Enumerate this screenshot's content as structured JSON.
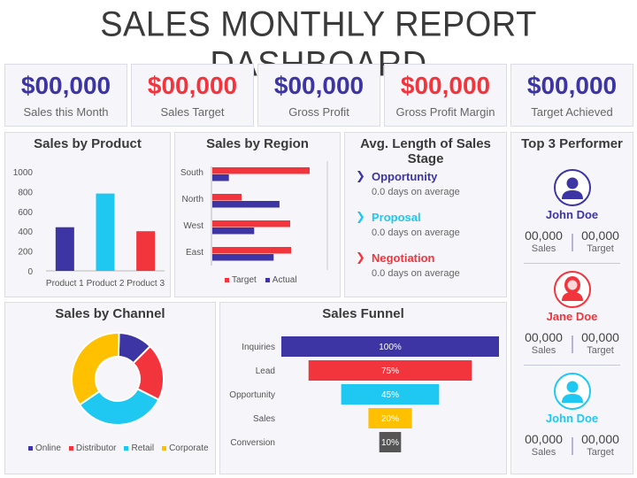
{
  "title": "SALES MONTHLY REPORT DASHBOARD",
  "colors": {
    "purple": "#3d35a3",
    "red": "#f2353d",
    "cyan": "#1ec8f0",
    "yellow": "#ffc000",
    "dark": "#555555"
  },
  "kpis": [
    {
      "value": "$00,000",
      "label": "Sales this Month",
      "color": "#3d35a3"
    },
    {
      "value": "$00,000",
      "label": "Sales Target",
      "color": "#f2353d"
    },
    {
      "value": "$00,000",
      "label": "Gross Profit",
      "color": "#3d35a3"
    },
    {
      "value": "$00,000",
      "label": "Gross Profit Margin",
      "color": "#f2353d"
    },
    {
      "value": "$00,000",
      "label": "Target Achieved",
      "color": "#3d35a3"
    }
  ],
  "product_title": "Sales by Product",
  "region_title": "Sales by Region",
  "stages_title": "Avg. Length of Sales Stage",
  "performer_title": "Top 3 Performer",
  "channel_title": "Sales by Channel",
  "funnel_title": "Sales Funnel",
  "stages": [
    {
      "chevron": "❯",
      "name": "Opportunity",
      "sub": "0.0 days on average",
      "color": "#3d35a3"
    },
    {
      "chevron": "❯",
      "name": "Proposal",
      "sub": "0.0 days on average",
      "color": "#1ec8f0"
    },
    {
      "chevron": "❯",
      "name": "Negotiation",
      "sub": "0.0 days on average",
      "color": "#f2353d"
    }
  ],
  "performers": [
    {
      "first": "John",
      "last": "Doe",
      "color": "#3d35a3",
      "sales": "00,000",
      "sales_label": "Sales",
      "target": "00,000",
      "target_label": "Target"
    },
    {
      "first": "Jane",
      "last": "Doe",
      "color": "#f2353d",
      "sales": "00,000",
      "sales_label": "Sales",
      "target": "00,000",
      "target_label": "Target"
    },
    {
      "first": "John",
      "last": "Doe",
      "color": "#1ec8f0",
      "sales": "00,000",
      "sales_label": "Sales",
      "target": "00,000",
      "target_label": "Target"
    }
  ],
  "chart_data": [
    {
      "type": "bar",
      "title": "Sales by Product",
      "categories": [
        "Product 1",
        "Product 2",
        "Product 3"
      ],
      "values": [
        440,
        780,
        400
      ],
      "colors": [
        "#3d35a3",
        "#1ec8f0",
        "#f2353d"
      ],
      "yticks": [
        "0",
        "200",
        "400",
        "600",
        "800",
        "1000"
      ],
      "ylim": [
        0,
        1000
      ]
    },
    {
      "type": "bar",
      "orientation": "horizontal",
      "title": "Sales by Region",
      "categories": [
        "South",
        "North",
        "West",
        "East"
      ],
      "series": [
        {
          "name": "Target",
          "values": [
            100,
            30,
            80,
            81
          ],
          "color": "#f2353d"
        },
        {
          "name": "Actual",
          "values": [
            17,
            69,
            43,
            63
          ],
          "color": "#3d35a3"
        }
      ],
      "xlim": [
        0,
        118
      ],
      "legend": "bottom"
    },
    {
      "type": "pie",
      "title": "Sales by Channel",
      "donut": true,
      "categories": [
        "Online",
        "Distributor",
        "Retail",
        "Corporate"
      ],
      "values": [
        12,
        20,
        33,
        35
      ],
      "colors": [
        "#3d35a3",
        "#f2353d",
        "#1ec8f0",
        "#ffc000"
      ],
      "legend": "bottom"
    },
    {
      "type": "bar",
      "orientation": "horizontal",
      "title": "Sales Funnel",
      "categories": [
        "Inquiries",
        "Lead",
        "Opportunity",
        "Sales",
        "Conversion"
      ],
      "values": [
        100,
        75,
        45,
        20,
        10
      ],
      "labels": [
        "100%",
        "75%",
        "45%",
        "20%",
        "10%"
      ],
      "colors": [
        "#3d35a3",
        "#f2353d",
        "#1ec8f0",
        "#ffc000",
        "#555555"
      ]
    }
  ]
}
